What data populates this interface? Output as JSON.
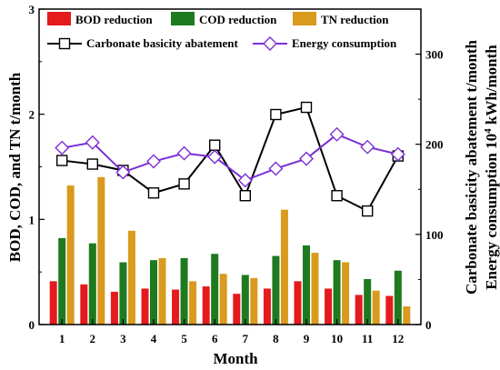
{
  "chart_data": {
    "type": "bar",
    "categories": [
      "1",
      "2",
      "3",
      "4",
      "5",
      "6",
      "7",
      "8",
      "9",
      "10",
      "11",
      "12"
    ],
    "xlabel": "Month",
    "ylabel_left": "BOD, COD, and TN  t/month",
    "ylabel_right_line1": "Carbonate basicity abatement  t/month",
    "ylabel_right_line2_prefix": "Energy consumption  10",
    "ylabel_right_line2_sup": "4",
    "ylabel_right_line2_suffix": " kWh/month",
    "left_axis": {
      "ylim": [
        0,
        3
      ],
      "ticks": [
        "0",
        "1",
        "2",
        "3"
      ]
    },
    "right_axis": {
      "ylim": [
        0,
        350
      ],
      "ticks": [
        "0",
        "100",
        "200",
        "300"
      ]
    },
    "series": [
      {
        "name": "BOD reduction",
        "axis": "left",
        "kind": "bar",
        "color": "#e41a1c",
        "values": [
          0.41,
          0.38,
          0.31,
          0.34,
          0.33,
          0.36,
          0.29,
          0.34,
          0.41,
          0.34,
          0.28,
          0.27
        ]
      },
      {
        "name": "COD reduction",
        "axis": "left",
        "kind": "bar",
        "color": "#1e7a1e",
        "values": [
          0.82,
          0.77,
          0.59,
          0.61,
          0.63,
          0.67,
          0.47,
          0.65,
          0.75,
          0.61,
          0.43,
          0.51
        ]
      },
      {
        "name": "TN reduction",
        "axis": "left",
        "kind": "bar",
        "color": "#d99a1e",
        "values": [
          1.32,
          1.4,
          0.89,
          0.63,
          0.41,
          0.48,
          0.44,
          1.09,
          0.68,
          0.59,
          0.32,
          0.17
        ]
      },
      {
        "name": "Carbonate basicity abatement",
        "axis": "right",
        "kind": "line",
        "color": "#000000",
        "marker": "square",
        "values": [
          182,
          178,
          171,
          146,
          156,
          199,
          143,
          233,
          241,
          143,
          126,
          187
        ]
      },
      {
        "name": "Energy consumption",
        "axis": "right",
        "kind": "line",
        "color": "#7b2fd6",
        "marker": "diamond",
        "values": [
          196,
          202,
          169,
          181,
          190,
          186,
          160,
          173,
          184,
          211,
          197,
          189
        ]
      }
    ],
    "legend_position": "top"
  }
}
